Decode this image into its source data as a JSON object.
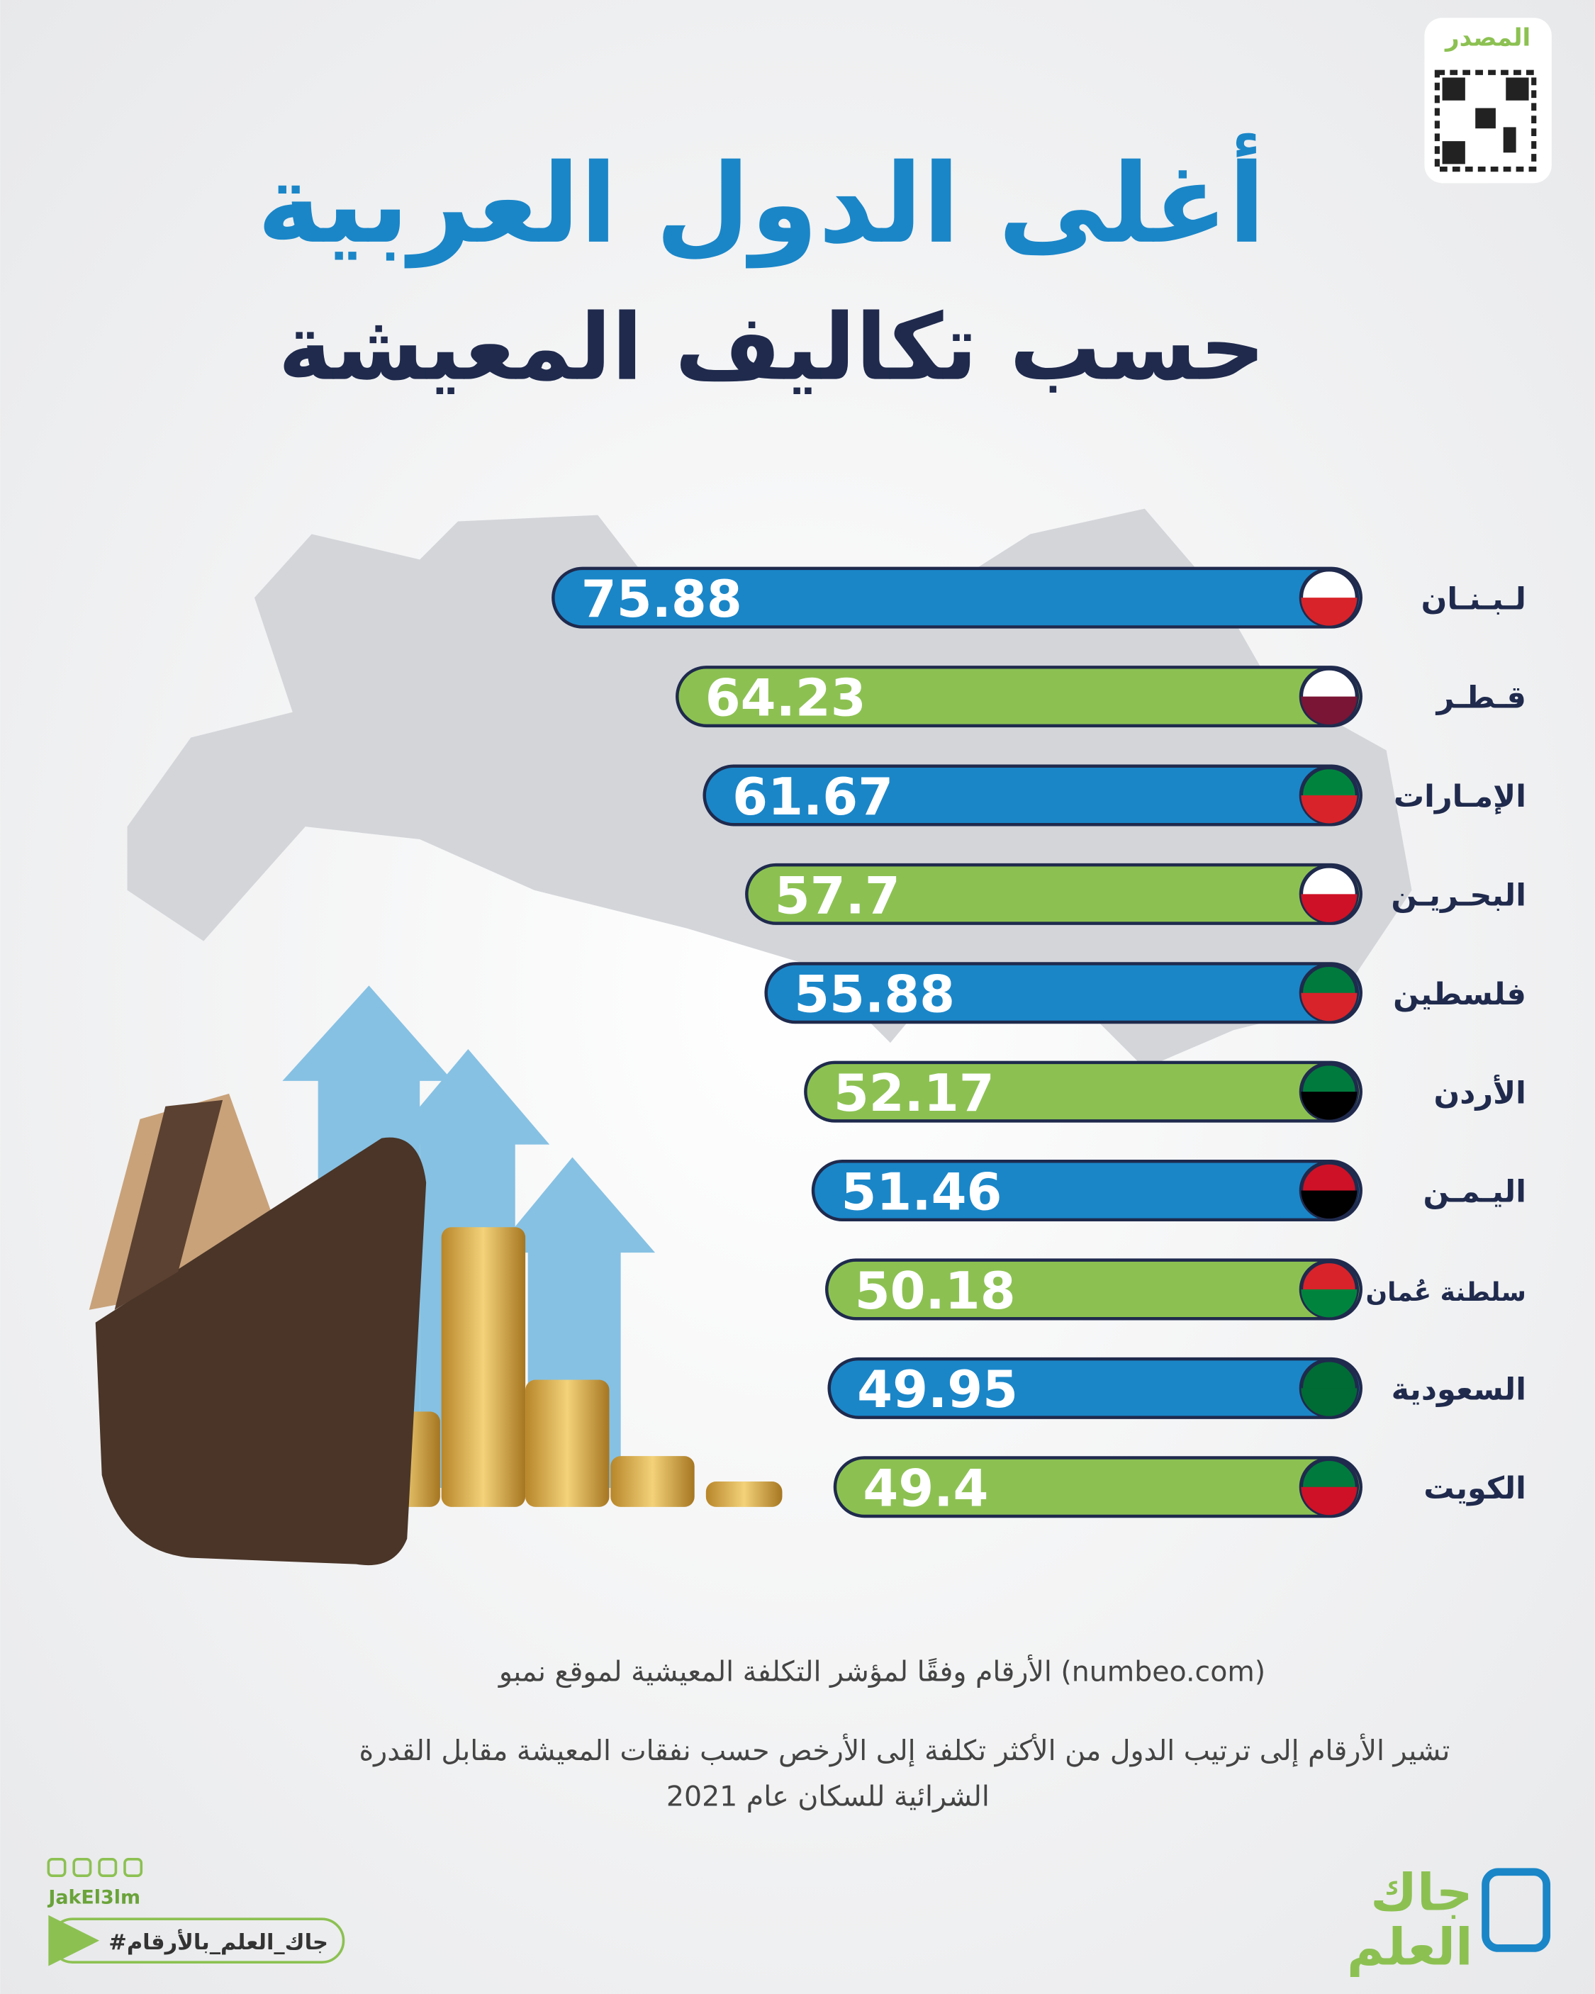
{
  "source_label": "المصدر",
  "chart_data": {
    "type": "bar",
    "orientation": "horizontal",
    "title": "أغلى الدول العربية",
    "subtitle": "حسب تكاليف المعيشة",
    "categories": [
      "لـبـنـان",
      "قـطـر",
      "الإمـارات",
      "البحـريـن",
      "فلسطين",
      "الأردن",
      "اليـمـن",
      "سلطنة عُمان",
      "السعودية",
      "الكويت"
    ],
    "values": [
      75.88,
      64.23,
      61.67,
      57.7,
      55.88,
      52.17,
      51.46,
      50.18,
      49.95,
      49.4
    ],
    "colors": [
      "#1a86c8",
      "#8cc152",
      "#1a86c8",
      "#8cc152",
      "#1a86c8",
      "#8cc152",
      "#1a86c8",
      "#8cc152",
      "#1a86c8",
      "#8cc152"
    ]
  },
  "notes": [
    "الأرقام وفقًا لمؤشر التكلفة المعيشية لموقع نمبو (numbeo.com)",
    "تشير الأرقام إلى ترتيب الدول من الأكثر تكلفة إلى الأرخص حسب نفقات المعيشة مقابل القدرة",
    "الشرائية للسكان عام 2021"
  ],
  "footer": {
    "handle": "JakEl3lm",
    "hashtag": "#جاك_العلم_بالأرقام",
    "logo": [
      "جاك",
      "العلم"
    ]
  }
}
